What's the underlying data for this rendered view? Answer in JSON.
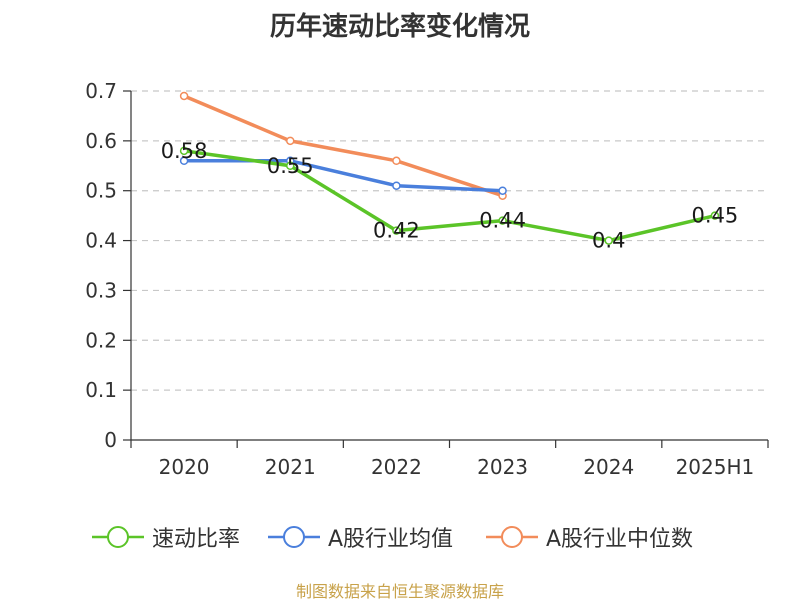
{
  "chart_data": {
    "type": "line",
    "title": "历年速动比率变化情况",
    "xlabel": "",
    "ylabel": "",
    "categories": [
      "2020",
      "2021",
      "2022",
      "2023",
      "2024",
      "2025H1"
    ],
    "ylim": [
      0,
      0.7
    ],
    "yticks": [
      "0",
      "0.1",
      "0.2",
      "0.3",
      "0.4",
      "0.5",
      "0.6",
      "0.7"
    ],
    "grid": true,
    "legend_position": "bottom",
    "series": [
      {
        "name": "速动比率",
        "color": "#5bc428",
        "values": [
          0.58,
          0.55,
          0.42,
          0.44,
          0.4,
          0.45
        ],
        "data_labels": [
          "0.58",
          "0.55",
          "0.42",
          "0.44",
          "0.4",
          "0.45"
        ]
      },
      {
        "name": "A股行业均值",
        "color": "#4a7fdc",
        "values": [
          0.56,
          0.56,
          0.51,
          0.5,
          null,
          null
        ]
      },
      {
        "name": "A股行业中位数",
        "color": "#f28c5a",
        "values": [
          0.69,
          0.6,
          0.56,
          0.49,
          null,
          null
        ]
      }
    ]
  },
  "legend_items": [
    "速动比率",
    "A股行业均值",
    "A股行业中位数"
  ],
  "source_note": "制图数据来自恒生聚源数据库"
}
